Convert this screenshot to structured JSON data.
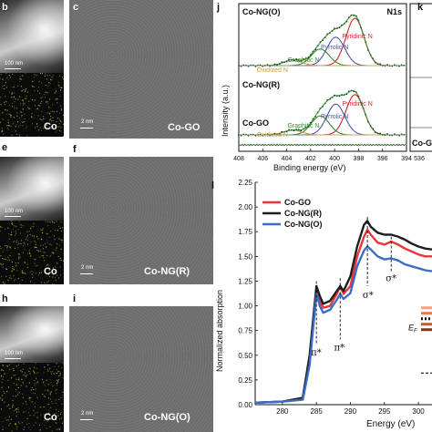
{
  "panels": {
    "b": {
      "label": "b",
      "scale_text": "100 nm",
      "tag": "Co"
    },
    "c": {
      "label": "c",
      "scale_text": "2 nm",
      "tag": "Co-GO"
    },
    "e": {
      "label": "e",
      "scale_text": "100 nm",
      "tag": "Co"
    },
    "f": {
      "label": "f",
      "scale_text": "2 nm",
      "tag": "Co-NG(R)"
    },
    "h": {
      "label": "h",
      "scale_text": "100 nm",
      "tag": "Co"
    },
    "i": {
      "label": "i",
      "scale_text": "2 nm",
      "tag": "Co-NG(O)"
    },
    "k": {
      "label": "k"
    }
  },
  "colors": {
    "red": "#e8343a",
    "blue": "#3b6cc7",
    "black": "#1e1e1e",
    "pyrrolic": "#4a57a6",
    "graphitic": "#3a8a34",
    "oxidized": "#d59a3a",
    "pyridinic": "#d3242b"
  },
  "chart_data": [
    {
      "type": "line",
      "panel": "j",
      "title": "N1s",
      "xlabel": "Binding energy (eV)",
      "ylabel": "Intensity (a.u.)",
      "xlim": [
        408,
        394
      ],
      "x_ticks": [
        "408",
        "406",
        "404",
        "402",
        "400",
        "398",
        "396",
        "394"
      ],
      "samples": [
        {
          "name": "Co-NG(O)",
          "components": [
            {
              "name": "Pyridinic N",
              "center": 398.3,
              "height": 1.0
            },
            {
              "name": "Pyrrolic N",
              "center": 399.9,
              "height": 0.6
            },
            {
              "name": "Graphitic N",
              "center": 401.2,
              "height": 0.35
            },
            {
              "name": "Oxidized N",
              "center": 403.5,
              "height": 0.12
            }
          ]
        },
        {
          "name": "Co-NG(R)",
          "components": [
            {
              "name": "Pyridinic N",
              "center": 398.3,
              "height": 0.85
            },
            {
              "name": "Pyrrolic N",
              "center": 399.9,
              "height": 0.65
            },
            {
              "name": "Graphitic N",
              "center": 401.2,
              "height": 0.4
            },
            {
              "name": "Oxidized N",
              "center": 403.5,
              "height": 0.1
            }
          ]
        },
        {
          "name": "Co-GO",
          "components": []
        }
      ]
    },
    {
      "type": "line",
      "panel": "k",
      "x_ticks": [
        "536"
      ],
      "visible_labels": [
        "Co-G"
      ]
    },
    {
      "type": "line",
      "panel": "l",
      "xlabel": "Energy (eV)",
      "ylabel": "Normalized absorption",
      "xlim": [
        276,
        302
      ],
      "ylim": [
        0.0,
        2.25
      ],
      "x_ticks": [
        "280",
        "285",
        "290",
        "295",
        "300"
      ],
      "y_ticks": [
        "0.00",
        "0.25",
        "0.50",
        "0.75",
        "1.00",
        "1.25",
        "1.50",
        "1.75",
        "2.00",
        "2.25"
      ],
      "annotations": [
        "π*",
        "π*",
        "σ*",
        "σ*"
      ],
      "legend_extra": "E",
      "legend_extra_sub": "F",
      "series": [
        {
          "name": "Co-GO",
          "color": "#e8343a"
        },
        {
          "name": "Co-NG(R)",
          "color": "#1e1e1e"
        },
        {
          "name": "Co-NG(O)",
          "color": "#3b6cc7"
        }
      ],
      "x": [
        276,
        280,
        283,
        284,
        285,
        285.5,
        286,
        287,
        288,
        288.5,
        289,
        290,
        291,
        292,
        292.5,
        293,
        294,
        295,
        296,
        297,
        298,
        299,
        300,
        301,
        302
      ],
      "curves": {
        "Co-GO": [
          0.02,
          0.03,
          0.06,
          0.45,
          1.17,
          1.05,
          0.98,
          1.0,
          1.12,
          1.2,
          1.12,
          1.2,
          1.5,
          1.7,
          1.77,
          1.72,
          1.64,
          1.62,
          1.65,
          1.62,
          1.58,
          1.55,
          1.52,
          1.5,
          1.5
        ],
        "Co-NG(R)": [
          0.02,
          0.03,
          0.07,
          0.5,
          1.2,
          1.1,
          1.02,
          1.05,
          1.15,
          1.2,
          1.15,
          1.3,
          1.6,
          1.82,
          1.86,
          1.8,
          1.74,
          1.72,
          1.72,
          1.7,
          1.67,
          1.63,
          1.6,
          1.58,
          1.57
        ],
        "Co-NG(O)": [
          0.02,
          0.03,
          0.05,
          0.4,
          1.12,
          1.0,
          0.93,
          0.96,
          1.06,
          1.12,
          1.07,
          1.13,
          1.4,
          1.56,
          1.6,
          1.57,
          1.5,
          1.47,
          1.48,
          1.46,
          1.42,
          1.4,
          1.38,
          1.36,
          1.35
        ]
      }
    }
  ]
}
